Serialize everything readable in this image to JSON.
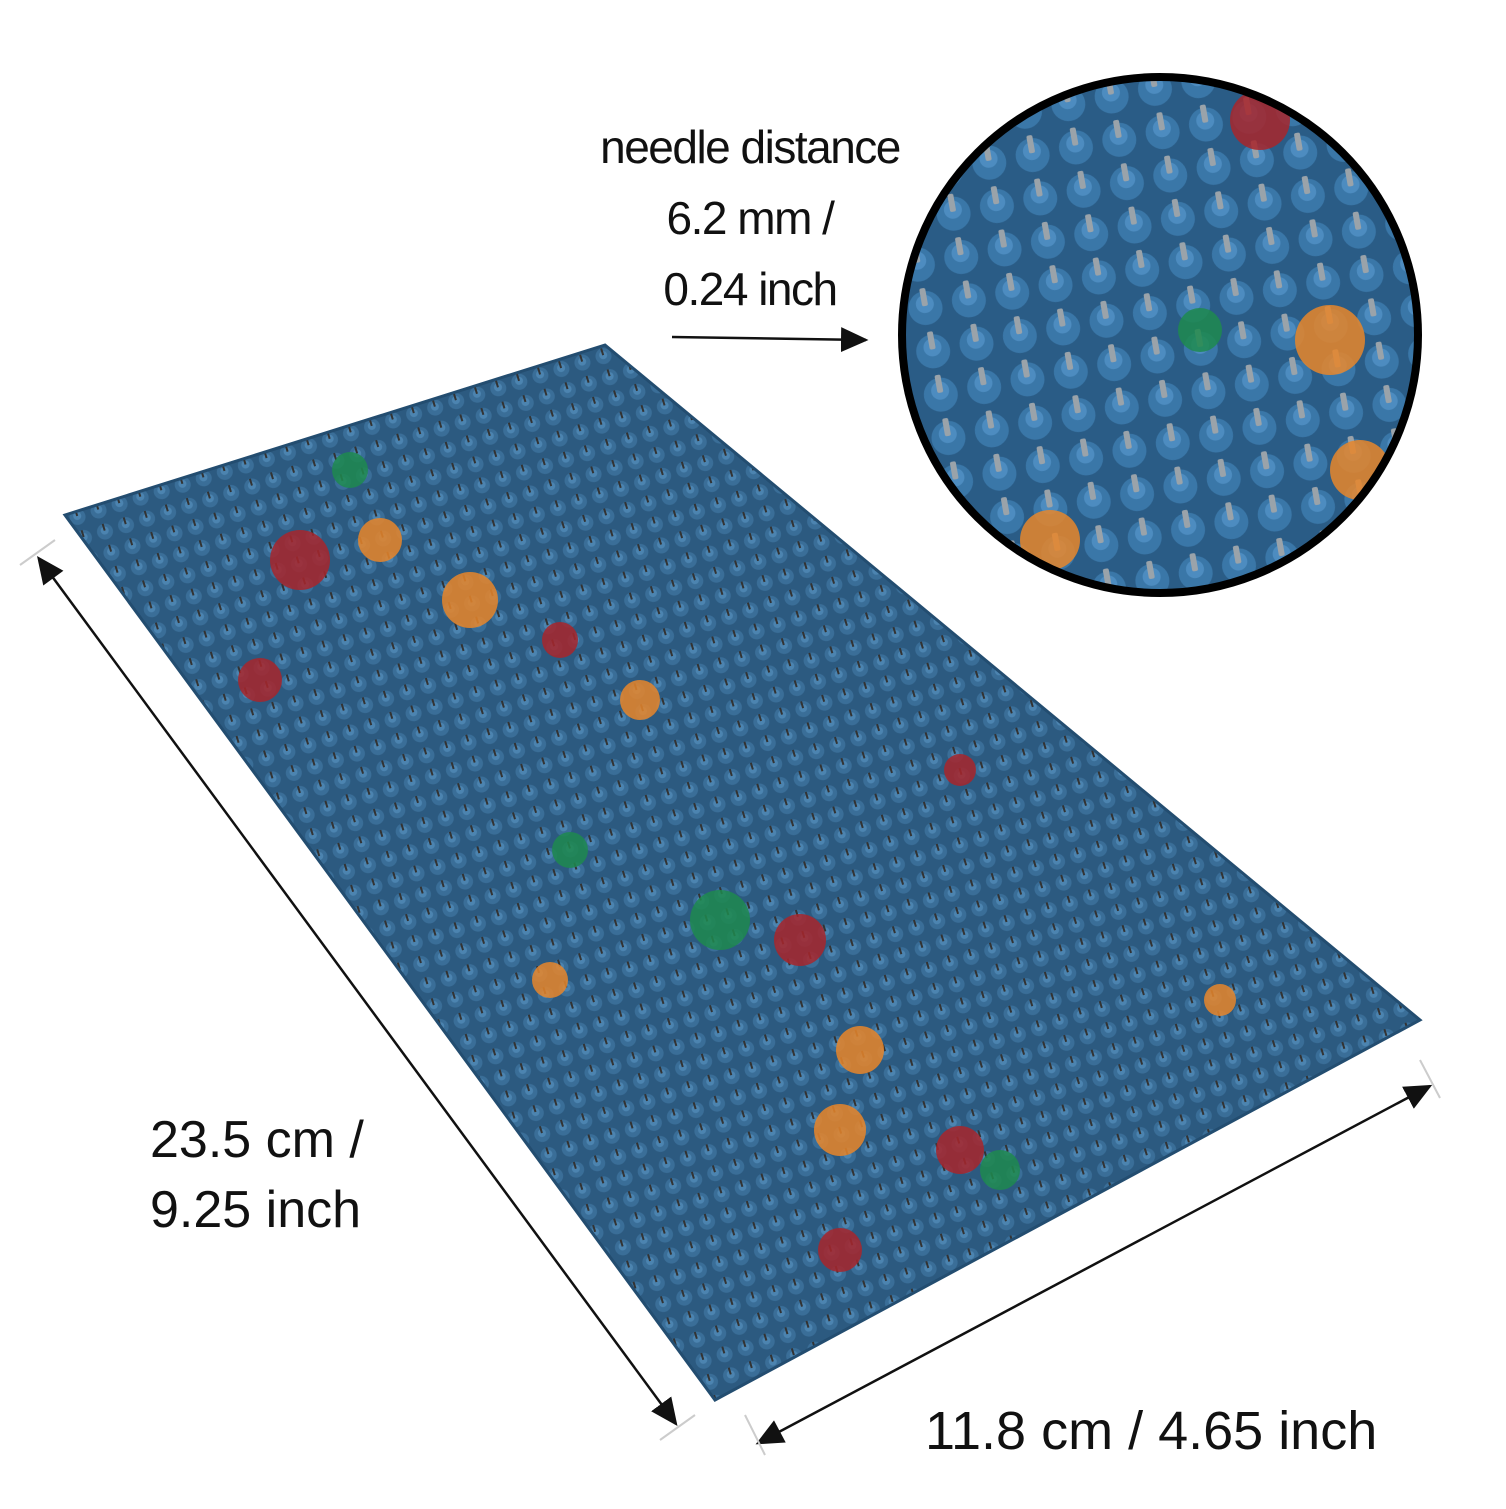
{
  "annotations": {
    "needle_distance_line1": "needle distance",
    "needle_distance_line2": "6.2 mm /",
    "needle_distance_line3": "0.24 inch",
    "length_line1": "23.5 cm /",
    "length_line2": "9.25 inch",
    "width": "11.8 cm / 4.65 inch"
  },
  "colors": {
    "mat_blue": "#2f5f86",
    "accent_orange": "#e8862a",
    "accent_red": "#a8262c",
    "accent_green": "#1f8a4f",
    "line": "#111111"
  }
}
